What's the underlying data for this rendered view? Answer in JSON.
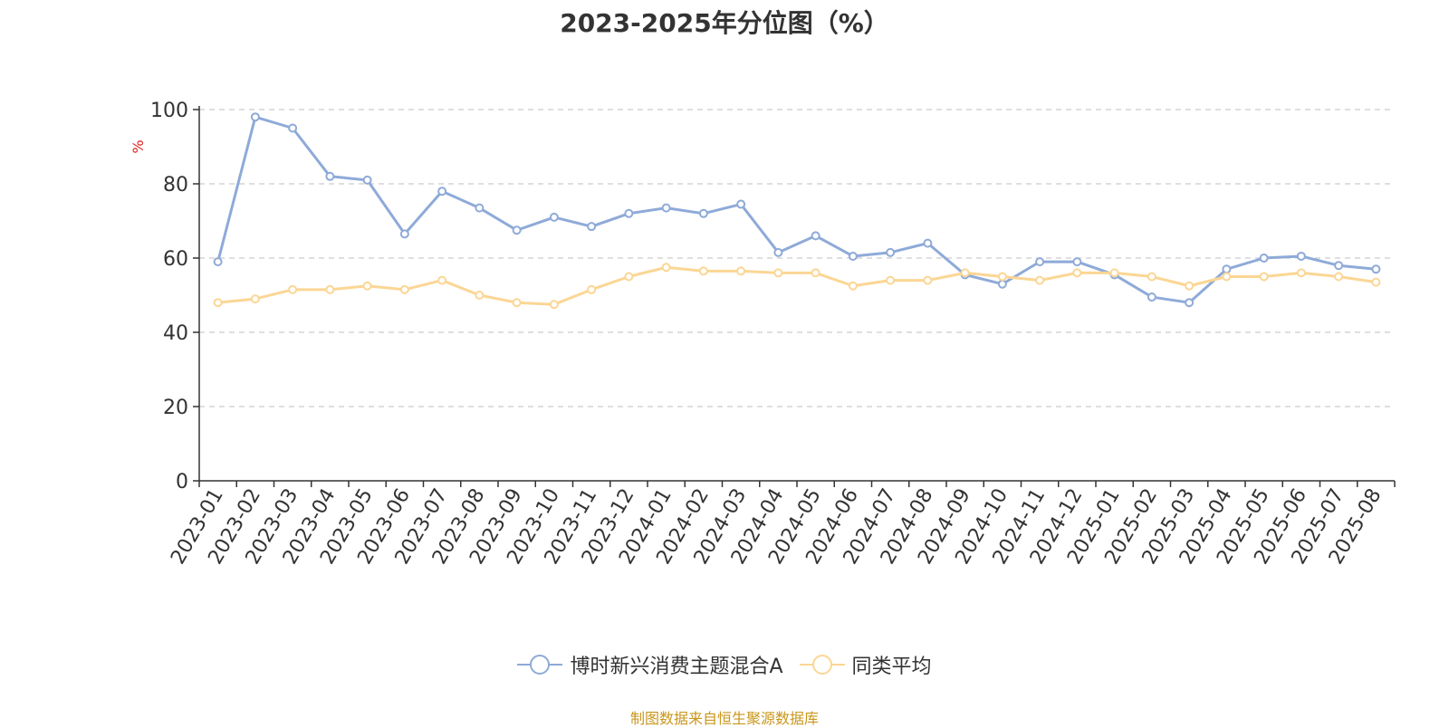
{
  "chart_data": {
    "type": "line",
    "title": "2023-2025年分位图（%）",
    "ylabel": "%",
    "xlabel": "",
    "ylim": [
      0,
      100
    ],
    "yticks": [
      0,
      20,
      40,
      60,
      80,
      100
    ],
    "grid": true,
    "legend_position": "bottom-center",
    "categories": [
      "2023-01",
      "2023-02",
      "2023-03",
      "2023-04",
      "2023-05",
      "2023-06",
      "2023-07",
      "2023-08",
      "2023-09",
      "2023-10",
      "2023-11",
      "2023-12",
      "2024-01",
      "2024-02",
      "2024-03",
      "2024-04",
      "2024-05",
      "2024-06",
      "2024-07",
      "2024-08",
      "2024-09",
      "2024-10",
      "2024-11",
      "2024-12",
      "2025-01",
      "2025-02",
      "2025-03",
      "2025-04",
      "2025-05",
      "2025-06",
      "2025-07",
      "2025-08"
    ],
    "series": [
      {
        "name": "博时新兴消费主题混合A",
        "color": "#8eaad8",
        "values": [
          59,
          98,
          95,
          82,
          81,
          66.5,
          78,
          73.5,
          67.5,
          71,
          68.5,
          72,
          73.5,
          72,
          74.5,
          61.5,
          66,
          60.5,
          61.5,
          64,
          55.5,
          53,
          59,
          59,
          55.5,
          49.5,
          48,
          57,
          60,
          60.5,
          58,
          57
        ]
      },
      {
        "name": "同类平均",
        "color": "#fbd694",
        "values": [
          48,
          49,
          51.5,
          51.5,
          52.5,
          51.5,
          54,
          50,
          48,
          47.5,
          51.5,
          55,
          57.5,
          56.5,
          56.5,
          56,
          56,
          52.5,
          54,
          54,
          56,
          55,
          54,
          56,
          56,
          55,
          52.5,
          55,
          55,
          56,
          55,
          53.5
        ]
      }
    ]
  },
  "source_note": "制图数据来自恒生聚源数据库"
}
